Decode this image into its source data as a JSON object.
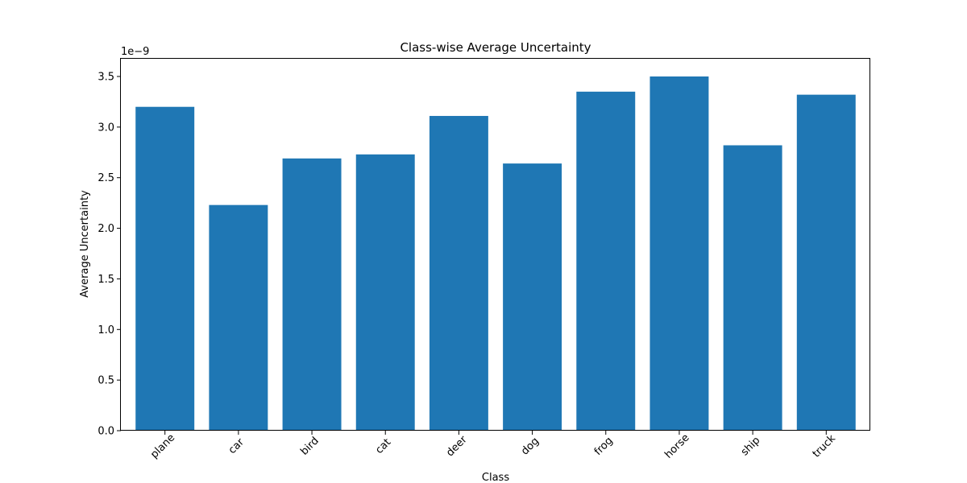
{
  "chart_data": {
    "type": "bar",
    "title": "Class-wise Average Uncertainty",
    "xlabel": "Class",
    "ylabel": "Average Uncertainty",
    "y_offset_label": "1e−9",
    "categories": [
      "plane",
      "car",
      "bird",
      "cat",
      "deer",
      "dog",
      "frog",
      "horse",
      "ship",
      "truck"
    ],
    "values": [
      3.2e-09,
      2.23e-09,
      2.69e-09,
      2.73e-09,
      3.11e-09,
      2.64e-09,
      3.35e-09,
      3.5e-09,
      2.82e-09,
      3.32e-09
    ],
    "ylim": [
      0,
      3.675e-09
    ],
    "yticks": [
      0,
      5e-10,
      1e-09,
      1.5e-09,
      2e-09,
      2.5e-09,
      3e-09,
      3.5e-09
    ],
    "ytick_labels": [
      "0.0",
      "0.5",
      "1.0",
      "1.5",
      "2.0",
      "2.5",
      "3.0",
      "3.5"
    ],
    "bar_color": "#1f77b4",
    "grid": false,
    "legend": false
  }
}
